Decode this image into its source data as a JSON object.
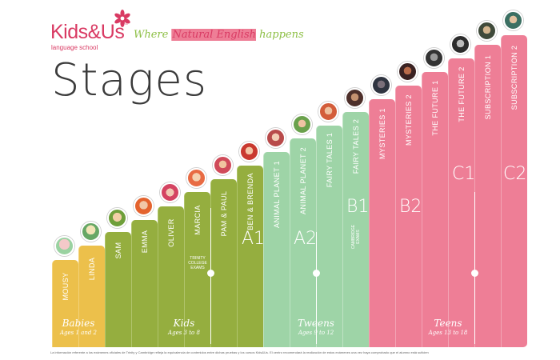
{
  "brand": {
    "name": "Kids&Us",
    "reg": "®",
    "sub": "language school"
  },
  "tagline": {
    "part1": "Where ",
    "part2": "Natural English",
    "part3": " happens"
  },
  "title": "Stages",
  "colors": {
    "yellow": "#ecc04b",
    "green": "#95ae3f",
    "mint": "#9ed4a7",
    "pink": "#ee7e96",
    "brand": "#d93a63",
    "tag_green": "#8dbf45"
  },
  "stages": [
    {
      "name": "MOUSY",
      "group": "babies"
    },
    {
      "name": "LINDA",
      "group": "babies"
    },
    {
      "name": "SAM",
      "group": "kids"
    },
    {
      "name": "EMMA",
      "group": "kids"
    },
    {
      "name": "OLIVER",
      "group": "kids"
    },
    {
      "name": "MARCIA",
      "group": "kids"
    },
    {
      "name": "PAM & PAUL",
      "group": "kids"
    },
    {
      "name": "BEN & BRENDA",
      "group": "kids"
    },
    {
      "name": "ANIMAL PLANET 1",
      "group": "tweens"
    },
    {
      "name": "ANIMAL PLANET 2",
      "group": "tweens"
    },
    {
      "name": "FAIRY TALES 1",
      "group": "tweens"
    },
    {
      "name": "FAIRY TALES 2",
      "group": "tweens"
    },
    {
      "name": "MYSTERIES 1",
      "group": "teens"
    },
    {
      "name": "MYSTERIES 2",
      "group": "teens"
    },
    {
      "name": "THE FUTURE 1",
      "group": "teens"
    },
    {
      "name": "THE FUTURE 2",
      "group": "teens"
    },
    {
      "name": "SUBSCRIPTION 1",
      "group": "teens"
    },
    {
      "name": "SUBSCRIPTION 2",
      "group": "teens"
    }
  ],
  "exam_notes": {
    "trinity": [
      "TRINITY",
      "COLLEGE",
      "EXAMS"
    ],
    "cambridge": [
      "CAMBRIDGE",
      "EXAMS"
    ]
  },
  "levels": [
    "A1",
    "A2",
    "B1",
    "B2",
    "C1",
    "C2"
  ],
  "groups": [
    {
      "label": "Babies",
      "ages": "Ages 1 and 2"
    },
    {
      "label": "Kids",
      "ages": "Ages 3 to 8"
    },
    {
      "label": "Tweens",
      "ages": "Ages 9 to 12"
    },
    {
      "label": "Teens",
      "ages": "Ages 13 to 18"
    }
  ],
  "footnote": "La información referente a los exámenes oficiales de Trinity y Cambridge refleja la equivalencia de contenidos entre dichas pruebas y los cursos Kids&Us. El centro recomendará la realización de estos exámenes una vez haya comprobado que el alumno está suficien"
}
